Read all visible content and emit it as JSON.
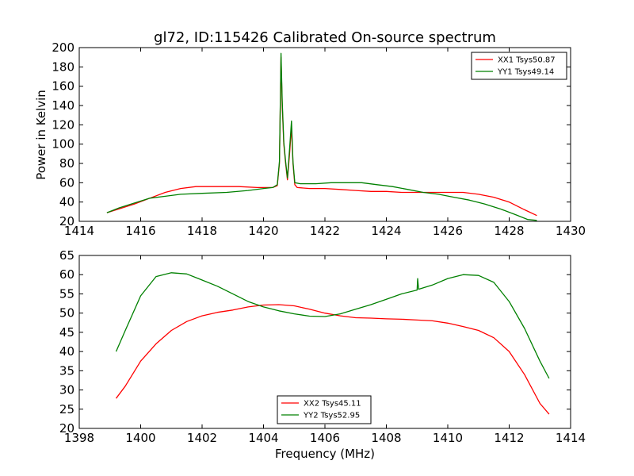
{
  "figure": {
    "title": "gl72, ID:115426 Calibrated On-source spectrum",
    "xlabel": "Frequency (MHz)",
    "ylabel": "Power in Kelvin"
  },
  "chart_data": [
    {
      "type": "line",
      "title": "gl72, ID:115426 Calibrated On-source spectrum",
      "ylabel": "Power in Kelvin",
      "xlabel": "",
      "xlim": [
        1414,
        1430
      ],
      "ylim": [
        20,
        200
      ],
      "xticks": [
        1414,
        1416,
        1418,
        1420,
        1422,
        1424,
        1426,
        1428,
        1430
      ],
      "yticks": [
        20,
        40,
        60,
        80,
        100,
        120,
        140,
        160,
        180,
        200
      ],
      "legend_position": "top-right",
      "grid": false,
      "series": [
        {
          "name": "XX1 Tsys50.87",
          "color": "#ff0000",
          "points": [
            [
              1414.9,
              29
            ],
            [
              1415.3,
              33
            ],
            [
              1415.8,
              38
            ],
            [
              1416.3,
              44
            ],
            [
              1416.8,
              50
            ],
            [
              1417.3,
              54
            ],
            [
              1417.8,
              56
            ],
            [
              1418.5,
              56
            ],
            [
              1419.2,
              56
            ],
            [
              1419.8,
              55
            ],
            [
              1420.3,
              55
            ],
            [
              1420.45,
              57
            ],
            [
              1420.52,
              80
            ],
            [
              1420.57,
              190
            ],
            [
              1420.61,
              140
            ],
            [
              1420.66,
              100
            ],
            [
              1420.72,
              80
            ],
            [
              1420.78,
              63
            ],
            [
              1420.85,
              90
            ],
            [
              1420.91,
              118
            ],
            [
              1420.96,
              80
            ],
            [
              1421.02,
              58
            ],
            [
              1421.1,
              55
            ],
            [
              1421.5,
              54
            ],
            [
              1422.0,
              54
            ],
            [
              1422.5,
              53
            ],
            [
              1423.0,
              52
            ],
            [
              1423.5,
              51
            ],
            [
              1424.0,
              51
            ],
            [
              1424.5,
              50
            ],
            [
              1425.0,
              50
            ],
            [
              1425.5,
              50
            ],
            [
              1426.0,
              50
            ],
            [
              1426.5,
              50
            ],
            [
              1427.0,
              48
            ],
            [
              1427.5,
              45
            ],
            [
              1428.0,
              40
            ],
            [
              1428.5,
              32
            ],
            [
              1428.9,
              26
            ]
          ]
        },
        {
          "name": "YY1 Tsys49.14",
          "color": "#008000",
          "points": [
            [
              1414.9,
              29
            ],
            [
              1415.3,
              34
            ],
            [
              1415.8,
              39
            ],
            [
              1416.3,
              44
            ],
            [
              1416.8,
              46
            ],
            [
              1417.3,
              48
            ],
            [
              1418.0,
              49
            ],
            [
              1418.8,
              50
            ],
            [
              1419.5,
              52
            ],
            [
              1420.0,
              54
            ],
            [
              1420.3,
              55
            ],
            [
              1420.45,
              58
            ],
            [
              1420.52,
              82
            ],
            [
              1420.57,
              194
            ],
            [
              1420.61,
              145
            ],
            [
              1420.66,
              102
            ],
            [
              1420.72,
              82
            ],
            [
              1420.78,
              65
            ],
            [
              1420.85,
              95
            ],
            [
              1420.91,
              124
            ],
            [
              1420.96,
              82
            ],
            [
              1421.02,
              60
            ],
            [
              1421.2,
              59
            ],
            [
              1421.7,
              59
            ],
            [
              1422.2,
              60
            ],
            [
              1422.7,
              60
            ],
            [
              1423.2,
              60
            ],
            [
              1423.7,
              58
            ],
            [
              1424.2,
              56
            ],
            [
              1424.7,
              53
            ],
            [
              1425.2,
              50
            ],
            [
              1425.7,
              48
            ],
            [
              1426.2,
              45
            ],
            [
              1426.7,
              42
            ],
            [
              1427.2,
              38
            ],
            [
              1427.7,
              33
            ],
            [
              1428.2,
              27
            ],
            [
              1428.6,
              22
            ],
            [
              1428.9,
              21
            ]
          ]
        }
      ]
    },
    {
      "type": "line",
      "title": "",
      "xlabel": "Frequency (MHz)",
      "ylabel": "",
      "xlim": [
        1398,
        1414
      ],
      "ylim": [
        20,
        65
      ],
      "xticks": [
        1398,
        1400,
        1402,
        1404,
        1406,
        1408,
        1410,
        1412,
        1414
      ],
      "yticks": [
        20,
        25,
        30,
        35,
        40,
        45,
        50,
        55,
        60,
        65
      ],
      "legend_position": "lower-center",
      "grid": false,
      "series": [
        {
          "name": "XX2 Tsys45.11",
          "color": "#ff0000",
          "points": [
            [
              1399.2,
              27.8
            ],
            [
              1399.5,
              31
            ],
            [
              1400.0,
              37.5
            ],
            [
              1400.5,
              42
            ],
            [
              1401.0,
              45.5
            ],
            [
              1401.5,
              47.8
            ],
            [
              1402.0,
              49.3
            ],
            [
              1402.5,
              50.2
            ],
            [
              1403.0,
              50.8
            ],
            [
              1403.5,
              51.6
            ],
            [
              1404.0,
              52.1
            ],
            [
              1404.5,
              52.2
            ],
            [
              1405.0,
              51.9
            ],
            [
              1405.5,
              51.0
            ],
            [
              1406.0,
              50.0
            ],
            [
              1406.5,
              49.3
            ],
            [
              1407.0,
              48.8
            ],
            [
              1407.5,
              48.7
            ],
            [
              1408.0,
              48.5
            ],
            [
              1408.5,
              48.4
            ],
            [
              1409.0,
              48.2
            ],
            [
              1409.5,
              48.0
            ],
            [
              1410.0,
              47.4
            ],
            [
              1410.5,
              46.5
            ],
            [
              1411.0,
              45.5
            ],
            [
              1411.5,
              43.6
            ],
            [
              1412.0,
              40.0
            ],
            [
              1412.5,
              34.0
            ],
            [
              1413.0,
              26.5
            ],
            [
              1413.3,
              23.7
            ]
          ]
        },
        {
          "name": "YY2 Tsys52.95",
          "color": "#008000",
          "points": [
            [
              1399.2,
              40.0
            ],
            [
              1399.5,
              45.5
            ],
            [
              1400.0,
              54.5
            ],
            [
              1400.5,
              59.5
            ],
            [
              1401.0,
              60.5
            ],
            [
              1401.5,
              60.2
            ],
            [
              1402.0,
              58.6
            ],
            [
              1402.5,
              57.0
            ],
            [
              1403.0,
              55.0
            ],
            [
              1403.5,
              53.0
            ],
            [
              1404.0,
              51.6
            ],
            [
              1404.5,
              50.6
            ],
            [
              1405.0,
              49.8
            ],
            [
              1405.5,
              49.2
            ],
            [
              1406.0,
              49.1
            ],
            [
              1406.5,
              49.8
            ],
            [
              1407.0,
              51.0
            ],
            [
              1407.5,
              52.2
            ],
            [
              1408.0,
              53.6
            ],
            [
              1408.5,
              55.0
            ],
            [
              1409.0,
              56.0
            ],
            [
              1409.02,
              59.0
            ],
            [
              1409.05,
              56.2
            ],
            [
              1409.5,
              57.3
            ],
            [
              1410.0,
              59.0
            ],
            [
              1410.5,
              60.0
            ],
            [
              1411.0,
              59.8
            ],
            [
              1411.5,
              58.0
            ],
            [
              1412.0,
              53.0
            ],
            [
              1412.5,
              46.0
            ],
            [
              1413.0,
              37.5
            ],
            [
              1413.3,
              33.0
            ]
          ]
        }
      ]
    }
  ]
}
